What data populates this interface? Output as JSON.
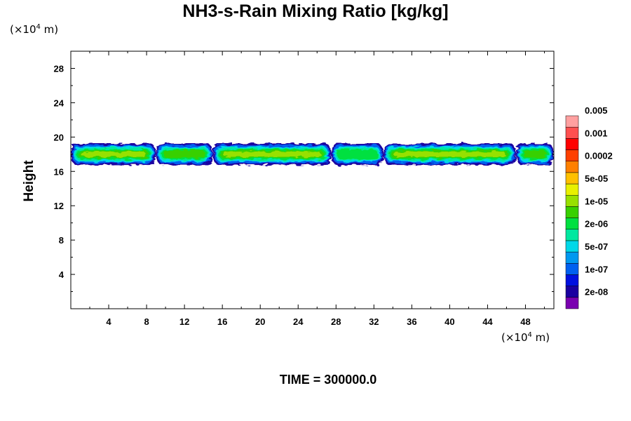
{
  "title": "NH3-s-Rain Mixing Ratio [kg/kg]",
  "y_unit": "(×10",
  "y_unit_exp": "4",
  "y_unit_m": " m)",
  "x_unit": "(×10",
  "x_unit_exp": "4",
  "x_unit_m": " m)",
  "ylabel": "Height",
  "time_label": "TIME = 300000.0",
  "chart_data": {
    "type": "heatmap",
    "title": "NH3-s-Rain Mixing Ratio [kg/kg]",
    "ylabel": "Height",
    "xlim": [
      0,
      51
    ],
    "ylim": [
      0,
      30
    ],
    "x_ticks": [
      4,
      8,
      12,
      16,
      20,
      24,
      28,
      32,
      36,
      40,
      44,
      48
    ],
    "y_ticks": [
      4,
      8,
      12,
      16,
      20,
      24,
      28
    ],
    "colorbar": {
      "levels": [
        "2e-08",
        "1e-07",
        "5e-07",
        "2e-06",
        "1e-05",
        "5e-05",
        "0.0002",
        "0.001",
        "0.005"
      ],
      "colors": [
        "#7a00b0",
        "#1a00a0",
        "#0010e0",
        "#0060f0",
        "#0098f0",
        "#00d8e8",
        "#00e8a0",
        "#00e040",
        "#38d000",
        "#98e000",
        "#e8f000",
        "#ffc000",
        "#ff8000",
        "#ff4000",
        "#ff0000",
        "#ff5050",
        "#ffa0a0"
      ]
    },
    "layer": {
      "y_base": 17,
      "y_top": 19.5,
      "core_y": 18,
      "segments": [
        {
          "x0": 0,
          "x1": 9,
          "level": 9
        },
        {
          "x0": 9,
          "x1": 15,
          "level": 8
        },
        {
          "x0": 15,
          "x1": 27.5,
          "level": 9
        },
        {
          "x0": 27.5,
          "x1": 33,
          "level": 7
        },
        {
          "x0": 33,
          "x1": 47,
          "level": 9
        },
        {
          "x0": 47,
          "x1": 51,
          "level": 8
        }
      ]
    }
  }
}
